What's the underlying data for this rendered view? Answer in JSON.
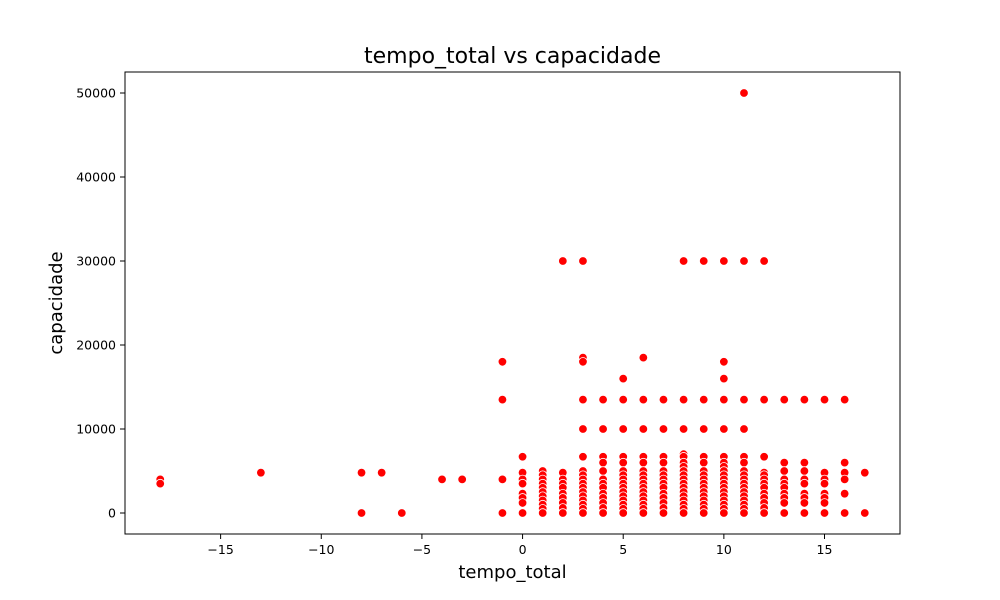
{
  "chart_data": {
    "type": "scatter",
    "title": "tempo_total vs capacidade",
    "xlabel": "tempo_total",
    "ylabel": "capacidade",
    "xlim": [
      -19.75,
      18.75
    ],
    "ylim": [
      -2500,
      52500
    ],
    "xticks": [
      -15,
      -10,
      -5,
      0,
      5,
      10,
      15
    ],
    "yticks": [
      0,
      10000,
      20000,
      30000,
      40000,
      50000
    ],
    "xtick_labels": [
      "−15",
      "−10",
      "−5",
      "0",
      "5",
      "10",
      "15"
    ],
    "ytick_labels": [
      "0",
      "10000",
      "20000",
      "30000",
      "40000",
      "50000"
    ],
    "grid": false,
    "legend": "none",
    "marker_color": "#ff0000",
    "marker_edge_color": "#ffffff",
    "points": [
      [
        -18,
        4000
      ],
      [
        -18,
        3500
      ],
      [
        -13,
        4800
      ],
      [
        -8,
        4800
      ],
      [
        -8,
        0
      ],
      [
        -7,
        4800
      ],
      [
        -6,
        0
      ],
      [
        -4,
        4000
      ],
      [
        -3,
        4000
      ],
      [
        -1,
        18000
      ],
      [
        -1,
        13500
      ],
      [
        -1,
        4000
      ],
      [
        -1,
        0
      ],
      [
        0,
        6700
      ],
      [
        0,
        4800
      ],
      [
        0,
        4000
      ],
      [
        0,
        3500
      ],
      [
        0,
        2300
      ],
      [
        0,
        1800
      ],
      [
        0,
        1200
      ],
      [
        0,
        0
      ],
      [
        1,
        5000
      ],
      [
        1,
        4500
      ],
      [
        1,
        4000
      ],
      [
        1,
        3500
      ],
      [
        1,
        3000
      ],
      [
        1,
        2500
      ],
      [
        1,
        2000
      ],
      [
        1,
        1500
      ],
      [
        1,
        1000
      ],
      [
        1,
        500
      ],
      [
        1,
        0
      ],
      [
        2,
        30000
      ],
      [
        2,
        4800
      ],
      [
        2,
        4000
      ],
      [
        2,
        3500
      ],
      [
        2,
        3000
      ],
      [
        2,
        2300
      ],
      [
        2,
        1800
      ],
      [
        2,
        1200
      ],
      [
        2,
        600
      ],
      [
        2,
        0
      ],
      [
        3,
        30000
      ],
      [
        3,
        18500
      ],
      [
        3,
        18000
      ],
      [
        3,
        13500
      ],
      [
        3,
        10000
      ],
      [
        3,
        6700
      ],
      [
        3,
        5000
      ],
      [
        3,
        4500
      ],
      [
        3,
        4000
      ],
      [
        3,
        3500
      ],
      [
        3,
        3000
      ],
      [
        3,
        2500
      ],
      [
        3,
        2000
      ],
      [
        3,
        1500
      ],
      [
        3,
        1000
      ],
      [
        3,
        500
      ],
      [
        3,
        0
      ],
      [
        4,
        13500
      ],
      [
        4,
        10000
      ],
      [
        4,
        6700
      ],
      [
        4,
        6000
      ],
      [
        4,
        5000
      ],
      [
        4,
        4000
      ],
      [
        4,
        3500
      ],
      [
        4,
        3000
      ],
      [
        4,
        2300
      ],
      [
        4,
        1800
      ],
      [
        4,
        1200
      ],
      [
        4,
        600
      ],
      [
        4,
        0
      ],
      [
        5,
        16000
      ],
      [
        5,
        13500
      ],
      [
        5,
        10000
      ],
      [
        5,
        6700
      ],
      [
        5,
        6000
      ],
      [
        5,
        5000
      ],
      [
        5,
        4500
      ],
      [
        5,
        4000
      ],
      [
        5,
        3500
      ],
      [
        5,
        3000
      ],
      [
        5,
        2500
      ],
      [
        5,
        2000
      ],
      [
        5,
        1500
      ],
      [
        5,
        1000
      ],
      [
        5,
        500
      ],
      [
        5,
        0
      ],
      [
        6,
        18500
      ],
      [
        6,
        13500
      ],
      [
        6,
        10000
      ],
      [
        6,
        6700
      ],
      [
        6,
        6000
      ],
      [
        6,
        5000
      ],
      [
        6,
        4500
      ],
      [
        6,
        4000
      ],
      [
        6,
        3500
      ],
      [
        6,
        3000
      ],
      [
        6,
        2500
      ],
      [
        6,
        2000
      ],
      [
        6,
        1500
      ],
      [
        6,
        1000
      ],
      [
        6,
        500
      ],
      [
        6,
        0
      ],
      [
        7,
        13500
      ],
      [
        7,
        10000
      ],
      [
        7,
        6700
      ],
      [
        7,
        6000
      ],
      [
        7,
        5000
      ],
      [
        7,
        4500
      ],
      [
        7,
        4000
      ],
      [
        7,
        3500
      ],
      [
        7,
        3000
      ],
      [
        7,
        2300
      ],
      [
        7,
        1800
      ],
      [
        7,
        1200
      ],
      [
        7,
        600
      ],
      [
        7,
        0
      ],
      [
        8,
        30000
      ],
      [
        8,
        13500
      ],
      [
        8,
        10000
      ],
      [
        8,
        7000
      ],
      [
        8,
        6700
      ],
      [
        8,
        6000
      ],
      [
        8,
        5500
      ],
      [
        8,
        5000
      ],
      [
        8,
        4500
      ],
      [
        8,
        4000
      ],
      [
        8,
        3500
      ],
      [
        8,
        3000
      ],
      [
        8,
        2500
      ],
      [
        8,
        2000
      ],
      [
        8,
        1500
      ],
      [
        8,
        1000
      ],
      [
        8,
        500
      ],
      [
        8,
        0
      ],
      [
        9,
        30000
      ],
      [
        9,
        13500
      ],
      [
        9,
        10000
      ],
      [
        9,
        6700
      ],
      [
        9,
        6000
      ],
      [
        9,
        5000
      ],
      [
        9,
        4500
      ],
      [
        9,
        4000
      ],
      [
        9,
        3500
      ],
      [
        9,
        3000
      ],
      [
        9,
        2500
      ],
      [
        9,
        2000
      ],
      [
        9,
        1500
      ],
      [
        9,
        1000
      ],
      [
        9,
        500
      ],
      [
        9,
        0
      ],
      [
        10,
        30000
      ],
      [
        10,
        18000
      ],
      [
        10,
        16000
      ],
      [
        10,
        13500
      ],
      [
        10,
        10000
      ],
      [
        10,
        6700
      ],
      [
        10,
        6000
      ],
      [
        10,
        5500
      ],
      [
        10,
        5000
      ],
      [
        10,
        4500
      ],
      [
        10,
        4000
      ],
      [
        10,
        3500
      ],
      [
        10,
        3000
      ],
      [
        10,
        2500
      ],
      [
        10,
        2000
      ],
      [
        10,
        1500
      ],
      [
        10,
        1000
      ],
      [
        10,
        500
      ],
      [
        10,
        0
      ],
      [
        11,
        50000
      ],
      [
        11,
        30000
      ],
      [
        11,
        13500
      ],
      [
        11,
        10000
      ],
      [
        11,
        6700
      ],
      [
        11,
        6000
      ],
      [
        11,
        5000
      ],
      [
        11,
        4500
      ],
      [
        11,
        4000
      ],
      [
        11,
        3500
      ],
      [
        11,
        3000
      ],
      [
        11,
        2500
      ],
      [
        11,
        2000
      ],
      [
        11,
        1500
      ],
      [
        11,
        1000
      ],
      [
        11,
        500
      ],
      [
        11,
        0
      ],
      [
        12,
        30000
      ],
      [
        12,
        13500
      ],
      [
        12,
        6700
      ],
      [
        12,
        4800
      ],
      [
        12,
        4500
      ],
      [
        12,
        4000
      ],
      [
        12,
        3500
      ],
      [
        12,
        3000
      ],
      [
        12,
        2300
      ],
      [
        12,
        1800
      ],
      [
        12,
        1200
      ],
      [
        12,
        600
      ],
      [
        12,
        0
      ],
      [
        13,
        13500
      ],
      [
        13,
        6000
      ],
      [
        13,
        5000
      ],
      [
        13,
        4000
      ],
      [
        13,
        3500
      ],
      [
        13,
        3000
      ],
      [
        13,
        2300
      ],
      [
        13,
        1800
      ],
      [
        13,
        1200
      ],
      [
        13,
        0
      ],
      [
        14,
        13500
      ],
      [
        14,
        6000
      ],
      [
        14,
        5000
      ],
      [
        14,
        4000
      ],
      [
        14,
        3500
      ],
      [
        14,
        2300
      ],
      [
        14,
        1800
      ],
      [
        14,
        1200
      ],
      [
        14,
        0
      ],
      [
        15,
        13500
      ],
      [
        15,
        4800
      ],
      [
        15,
        4000
      ],
      [
        15,
        3500
      ],
      [
        15,
        2300
      ],
      [
        15,
        1800
      ],
      [
        15,
        1200
      ],
      [
        15,
        0
      ],
      [
        16,
        13500
      ],
      [
        16,
        6000
      ],
      [
        16,
        4800
      ],
      [
        16,
        4000
      ],
      [
        16,
        2300
      ],
      [
        16,
        0
      ],
      [
        17,
        4800
      ],
      [
        17,
        0
      ]
    ]
  }
}
